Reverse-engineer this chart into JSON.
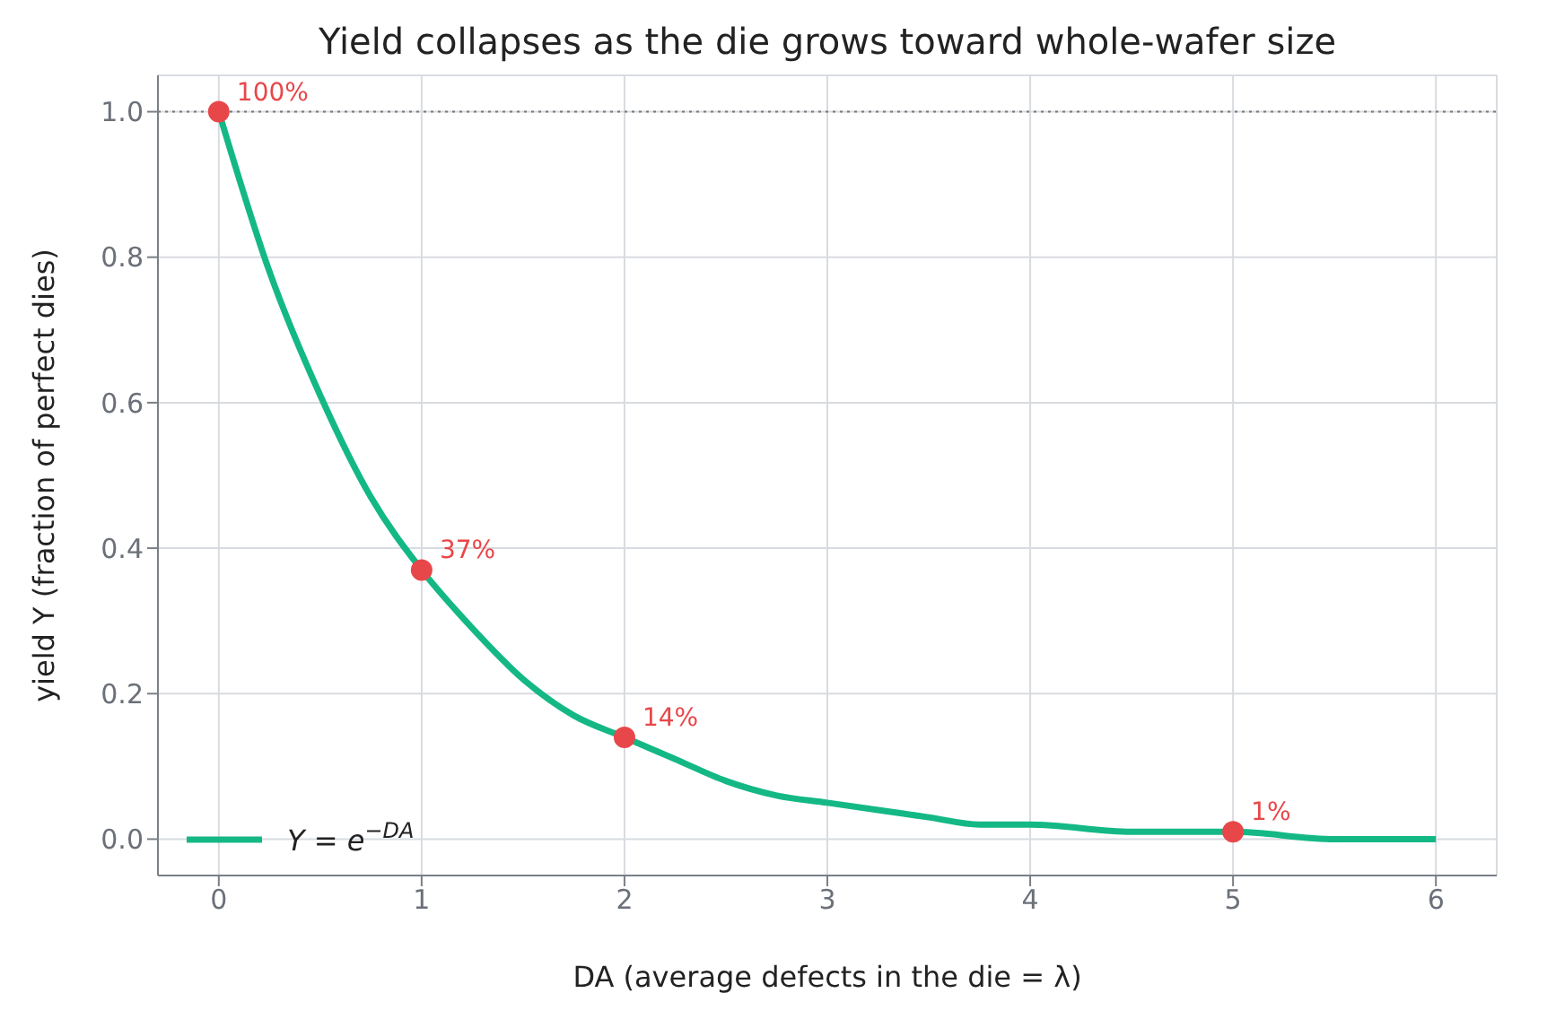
{
  "chart_data": {
    "type": "line",
    "title": "Yield collapses as the die grows toward whole-wafer size",
    "xlabel": "DA  (average defects in the die = λ)",
    "ylabel": "yield Y  (fraction of perfect dies)",
    "series": [
      {
        "name": "Y = e$^{−DA}$",
        "color": "#14b885",
        "x": [
          0,
          0.25,
          0.5,
          0.75,
          1,
          1.25,
          1.5,
          1.75,
          2,
          2.25,
          2.5,
          2.75,
          3,
          3.25,
          3.5,
          3.75,
          4,
          4.5,
          5,
          5.5,
          6
        ],
        "values": [
          1,
          0.78,
          0.61,
          0.47,
          0.37,
          0.29,
          0.22,
          0.17,
          0.14,
          0.11,
          0.08,
          0.06,
          0.05,
          0.04,
          0.03,
          0.02,
          0.02,
          0.01,
          0.01,
          0,
          0
        ]
      },
      {
        "type": "scatter",
        "marker": "circle",
        "color": "#e8474a",
        "x": [
          0,
          1,
          2,
          5
        ],
        "values": [
          1,
          0.37,
          0.14,
          0.01
        ],
        "value_labels": [
          "100%",
          "37%",
          "14%",
          "1%"
        ]
      }
    ],
    "xlim": [
      -0.3,
      6.3
    ],
    "xticks": [
      0,
      1,
      2,
      3,
      4,
      5,
      6
    ],
    "ylim": [
      -0.05,
      1.05
    ],
    "yticks": [
      {
        "value": 0,
        "label": "0.0"
      },
      {
        "value": 0.2,
        "label": "0.2"
      },
      {
        "value": 0.4,
        "label": "0.4"
      },
      {
        "value": 0.6,
        "label": "0.6"
      },
      {
        "value": 0.8,
        "label": "0.8"
      },
      {
        "value": 1,
        "label": "1.0"
      }
    ],
    "ref_lines": [
      {
        "axis": "y",
        "value": 1,
        "color": "#777777",
        "line_style": "dotted"
      }
    ],
    "grid": true,
    "legend": "bottom left",
    "line_style": "solid"
  }
}
